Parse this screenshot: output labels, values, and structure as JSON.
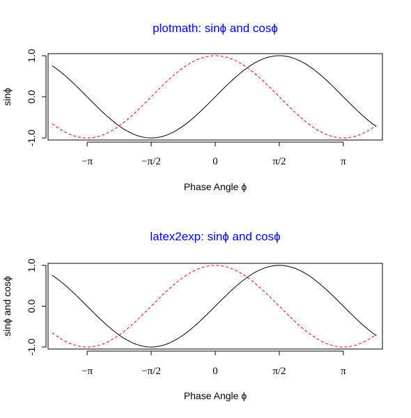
{
  "colors": {
    "title": "#0000ff",
    "series_sin": "#000000",
    "series_cos": "#ff0000",
    "axis": "#000000",
    "background": "#ffffff"
  },
  "chart_data": [
    {
      "type": "line",
      "title": "plotmath: sinϕ  and  cosϕ",
      "xlabel": "Phase Angle ϕ",
      "ylabel": "sinϕ",
      "xlim": [
        -4.1,
        4.1
      ],
      "ylim": [
        -1.05,
        1.05
      ],
      "x_ticks": [
        {
          "value": -3.14159,
          "label": "−π"
        },
        {
          "value": -1.5708,
          "label": "−π/2"
        },
        {
          "value": 0,
          "label": "0"
        },
        {
          "value": 1.5708,
          "label": "π/2"
        },
        {
          "value": 3.14159,
          "label": "π"
        }
      ],
      "y_ticks": [
        {
          "value": -1.0,
          "label": "-1.0"
        },
        {
          "value": 0.0,
          "label": "0.0"
        },
        {
          "value": 1.0,
          "label": "1.0"
        }
      ],
      "x_range": [
        -4.0,
        3.95
      ],
      "series": [
        {
          "function": "sin",
          "color": "#000000",
          "style": "solid"
        },
        {
          "function": "cos",
          "color": "#ff0000",
          "style": "dashed"
        }
      ],
      "grid": false,
      "legend": "none"
    },
    {
      "type": "line",
      "title": "latex2exp: sinϕ and cosϕ",
      "xlabel": "Phase Angle ϕ",
      "ylabel": "sinϕ and cosϕ",
      "xlim": [
        -4.1,
        4.1
      ],
      "ylim": [
        -1.05,
        1.05
      ],
      "x_ticks": [
        {
          "value": -3.14159,
          "label": "−π"
        },
        {
          "value": -1.5708,
          "label": "−π/2"
        },
        {
          "value": 0,
          "label": "0"
        },
        {
          "value": 1.5708,
          "label": "π/2"
        },
        {
          "value": 3.14159,
          "label": "π"
        }
      ],
      "y_ticks": [
        {
          "value": -1.0,
          "label": "-1.0"
        },
        {
          "value": 0.0,
          "label": "0.0"
        },
        {
          "value": 1.0,
          "label": "1.0"
        }
      ],
      "x_range": [
        -4.0,
        3.95
      ],
      "series": [
        {
          "function": "sin",
          "color": "#000000",
          "style": "solid"
        },
        {
          "function": "cos",
          "color": "#ff0000",
          "style": "dashed"
        }
      ],
      "grid": false,
      "legend": "none"
    }
  ]
}
